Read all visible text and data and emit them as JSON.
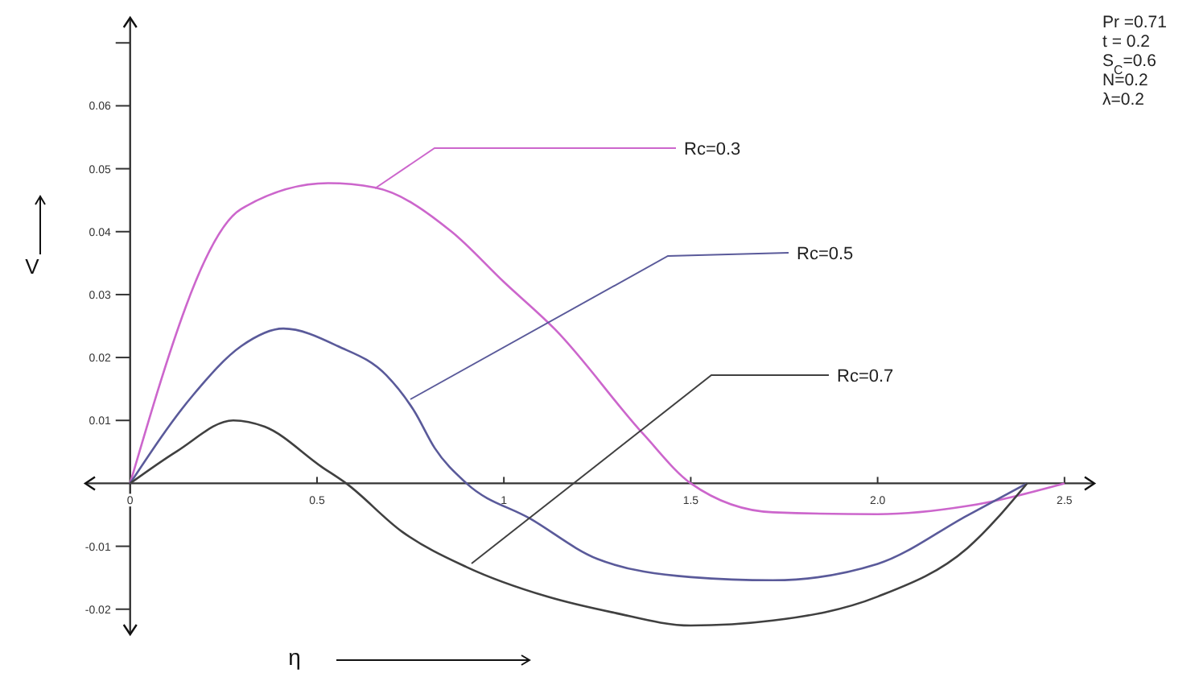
{
  "chart_data": {
    "type": "line",
    "xlabel": "η",
    "ylabel": "V",
    "xlim": [
      -0.12,
      2.58
    ],
    "ylim": [
      -0.024,
      0.074
    ],
    "xticks": [
      {
        "value": 0,
        "label": "0"
      },
      0.5,
      1,
      1.5,
      {
        "value": 2,
        "label": "2.0"
      },
      2.5
    ],
    "yticks": [
      -0.02,
      -0.01,
      {
        "value": 0,
        "label": null
      },
      0.01,
      0.02,
      0.03,
      0.04,
      0.05,
      0.06,
      {
        "value": 0.07,
        "label": null
      }
    ],
    "grid": false,
    "legend": false,
    "marker": "none",
    "line_style": "solid",
    "annotations": [
      "Pr =0.71",
      "t = 0.2",
      "S$_{C}$=0.6",
      "N=0.2",
      "λ=0.2"
    ],
    "series": [
      {
        "name": "Rc=0.3",
        "color": "#cc66cc",
        "x": [
          0,
          0.297,
          0.53,
          0.655,
          0.86,
          1.0,
          1.138,
          1.375,
          1.5,
          1.72,
          2.0,
          2.24,
          2.5
        ],
        "values": [
          0,
          0.0436,
          0.0477,
          0.047,
          0.04,
          0.032,
          0.0244,
          0.0077,
          0,
          -0.0046,
          -0.0049,
          -0.0036,
          0
        ]
      },
      {
        "name": "Rc=0.5",
        "color": "#5a5a9a",
        "x": [
          0,
          0.168,
          0.297,
          0.41,
          0.556,
          0.685,
          0.76,
          0.815,
          0.9,
          1.07,
          1.25,
          1.5,
          1.72,
          2.0,
          2.24,
          2.4
        ],
        "values": [
          0,
          0.014,
          0.0218,
          0.0246,
          0.0218,
          0.0172,
          0.0115,
          0.0056,
          0,
          -0.0056,
          -0.012,
          -0.0149,
          -0.0154,
          -0.0128,
          -0.0051,
          0
        ]
      },
      {
        "name": "Rc=0.7",
        "color": "#404040",
        "x": [
          0,
          0.125,
          0.276,
          0.36,
          0.513,
          0.578,
          0.728,
          0.9,
          1.116,
          1.29,
          1.5,
          1.72,
          2.0,
          2.24,
          2.4
        ],
        "values": [
          0,
          0.0051,
          0.01,
          0.009,
          0.0026,
          0,
          -0.0077,
          -0.0133,
          -0.018,
          -0.0205,
          -0.0226,
          -0.0218,
          -0.018,
          -0.0103,
          0
        ]
      }
    ]
  }
}
